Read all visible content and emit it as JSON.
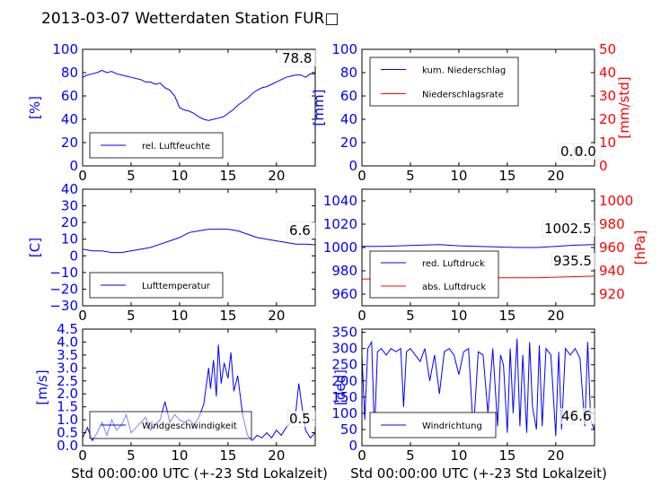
{
  "title": "2013-03-07 Wetterdaten Station FUR□",
  "xlabel": "Std 00:00:00 UTC (+-23 Std Lokalzeit)",
  "colors": {
    "blue": "#0000ff",
    "red": "#ff0000"
  },
  "chart_data": [
    {
      "id": "humidity",
      "type": "line",
      "ylabel": "[%]",
      "xlim": [
        0,
        24
      ],
      "ylim": [
        0,
        100
      ],
      "xticks": [
        "0",
        "5",
        "10",
        "15",
        "20"
      ],
      "yticks": [
        "0",
        "20",
        "40",
        "60",
        "80",
        "100"
      ],
      "legend": "lower-left",
      "end_label": "78.8",
      "series": [
        {
          "name": "rel. Luftfeuchte",
          "color": "#0000ff",
          "x": [
            0,
            0.5,
            1,
            1.5,
            2,
            2.5,
            3,
            3.5,
            4,
            4.5,
            5,
            5.5,
            6,
            6.5,
            7,
            7.5,
            8,
            8.5,
            9,
            9.5,
            10,
            10.5,
            11,
            11.5,
            12,
            12.5,
            13,
            13.5,
            14,
            14.5,
            15,
            15.5,
            16,
            16.5,
            17,
            17.5,
            18,
            18.5,
            19,
            19.5,
            20,
            20.5,
            21,
            21.5,
            22,
            22.5,
            23,
            23.5,
            24
          ],
          "y": [
            76,
            78,
            79,
            80,
            82,
            80,
            81,
            79,
            78,
            77,
            76,
            75,
            74,
            72,
            72,
            70,
            71,
            67,
            65,
            60,
            50,
            48,
            47,
            45,
            42,
            40,
            39,
            40,
            41,
            42,
            45,
            48,
            52,
            55,
            58,
            62,
            65,
            67,
            68,
            70,
            72,
            74,
            76,
            77,
            78,
            78,
            76,
            79,
            79
          ]
        }
      ]
    },
    {
      "id": "precip",
      "type": "line",
      "ylabel": "[mm]",
      "y2label": "[mm/std]",
      "xlim": [
        0,
        24
      ],
      "ylim": [
        0,
        100
      ],
      "y2lim": [
        0,
        50
      ],
      "xticks": [
        "0",
        "5",
        "10",
        "15",
        "20"
      ],
      "yticks": [
        "0",
        "20",
        "40",
        "60",
        "80",
        "100"
      ],
      "y2ticks": [
        "0",
        "10",
        "20",
        "30",
        "40",
        "50"
      ],
      "legend": "upper-left",
      "end_labels": [
        "0.0",
        "0.0"
      ],
      "series": [
        {
          "name": "kum. Niederschlag",
          "color": "#0000ff",
          "x": [
            0,
            24
          ],
          "y": [
            0,
            0
          ]
        },
        {
          "name": "Niederschlagsrate",
          "color": "#ff0000",
          "x": [
            0,
            24
          ],
          "y": [
            0,
            0
          ]
        }
      ]
    },
    {
      "id": "temperature",
      "type": "line",
      "ylabel": "[C]",
      "xlim": [
        0,
        24
      ],
      "ylim": [
        -30,
        40
      ],
      "xticks": [
        "0",
        "5",
        "10",
        "15",
        "20"
      ],
      "yticks": [
        "−30",
        "−20",
        "−10",
        "0",
        "10",
        "20",
        "30",
        "40"
      ],
      "legend": "lower-left",
      "end_label": "6.6",
      "series": [
        {
          "name": "Lufttemperatur",
          "color": "#0000ff",
          "x": [
            0,
            1,
            2,
            3,
            4,
            5,
            6,
            7,
            8,
            9,
            10,
            11,
            12,
            13,
            14,
            15,
            16,
            17,
            18,
            19,
            20,
            21,
            22,
            23,
            24
          ],
          "y": [
            4,
            3,
            3,
            2,
            2,
            3,
            4,
            5,
            7,
            9,
            11,
            14,
            15,
            16,
            16,
            16,
            15,
            13,
            11,
            10,
            9,
            8,
            7,
            7,
            6.6
          ]
        }
      ]
    },
    {
      "id": "pressure",
      "type": "line",
      "y2label": "[hPa]",
      "xlim": [
        0,
        24
      ],
      "ylim": [
        950,
        1050
      ],
      "y2lim": [
        910,
        1010
      ],
      "xticks": [
        "0",
        "5",
        "10",
        "15",
        "20"
      ],
      "yticks": [
        "960",
        "980",
        "1000",
        "1020",
        "1040"
      ],
      "y2ticks": [
        "920",
        "940",
        "960",
        "980",
        "1000"
      ],
      "legend": "lower-left",
      "end_labels": [
        "1002.5",
        "935.5"
      ],
      "series": [
        {
          "name": "red. Luftdruck",
          "color": "#0000ff",
          "x": [
            0,
            2,
            4,
            6,
            8,
            10,
            12,
            14,
            16,
            18,
            20,
            22,
            24
          ],
          "y": [
            1001,
            1001,
            1001.5,
            1002,
            1002.5,
            1001.5,
            1001,
            1000.5,
            1000,
            1000,
            1001,
            1002,
            1002.5
          ]
        },
        {
          "name": "abs. Luftdruck",
          "color": "#ff0000",
          "x": [
            0,
            2,
            4,
            6,
            8,
            10,
            12,
            14,
            16,
            18,
            20,
            22,
            24
          ],
          "y": [
            933,
            933,
            933,
            933.5,
            934,
            934,
            934,
            934,
            934,
            934,
            934.5,
            935,
            935.5
          ]
        }
      ]
    },
    {
      "id": "windspeed",
      "type": "line",
      "ylabel": "[m/s]",
      "xlim": [
        0,
        24
      ],
      "ylim": [
        0,
        4.5
      ],
      "xticks": [
        "0",
        "5",
        "10",
        "15",
        "20"
      ],
      "yticks": [
        "0.0",
        "0.5",
        "1.0",
        "1.5",
        "2.0",
        "2.5",
        "3.0",
        "3.5",
        "4.0",
        "4.5"
      ],
      "legend": "lower-left",
      "end_label": "0.5",
      "series": [
        {
          "name": "Windgeschwindigkeit",
          "color": "#0000ff",
          "x": [
            0,
            0.5,
            1,
            1.5,
            2,
            2.5,
            3,
            3.5,
            4,
            4.5,
            5,
            5.5,
            6,
            6.5,
            7,
            7.5,
            8,
            8.5,
            9,
            9.5,
            10,
            10.5,
            11,
            11.5,
            12,
            12.5,
            13,
            13.2,
            13.5,
            13.8,
            14,
            14.3,
            14.6,
            15,
            15.3,
            15.6,
            16,
            16.5,
            17,
            17.5,
            18,
            18.5,
            19,
            19.5,
            20,
            20.5,
            21,
            21.5,
            22,
            22.3,
            22.6,
            23,
            23.5,
            24
          ],
          "y": [
            0.3,
            0.7,
            0.2,
            0.5,
            0.9,
            0.4,
            1.0,
            0.6,
            0.8,
            1.2,
            0.5,
            0.7,
            0.9,
            1.1,
            0.6,
            0.8,
            1.0,
            1.7,
            0.9,
            1.2,
            1.0,
            0.9,
            1.0,
            0.8,
            1.1,
            1.6,
            3.0,
            2.2,
            3.3,
            1.9,
            3.9,
            2.4,
            3.2,
            2.6,
            3.6,
            2.1,
            2.7,
            1.2,
            0.4,
            0.2,
            0.4,
            0.3,
            0.5,
            0.3,
            0.6,
            0.4,
            0.7,
            0.9,
            1.3,
            2.4,
            1.6,
            0.6,
            0.3,
            0.5
          ]
        }
      ]
    },
    {
      "id": "winddir",
      "type": "line",
      "ylabel": "[deg]",
      "xlim": [
        0,
        24
      ],
      "ylim": [
        0,
        360
      ],
      "xticks": [
        "0",
        "5",
        "10",
        "15",
        "20"
      ],
      "yticks": [
        "0",
        "50",
        "100",
        "150",
        "200",
        "250",
        "300",
        "350"
      ],
      "legend": "lower-left",
      "end_label": "46.6",
      "series": [
        {
          "name": "Windrichtung",
          "color": "#0000ff",
          "x": [
            0,
            0.3,
            0.6,
            1,
            1.3,
            1.6,
            2,
            2.5,
            3,
            3.5,
            4,
            4.3,
            4.6,
            5,
            5.5,
            6,
            6.5,
            7,
            7.5,
            8,
            8.5,
            9,
            9.5,
            10,
            10.5,
            11,
            11.5,
            12,
            12.5,
            13,
            13.5,
            14,
            14.3,
            14.6,
            15,
            15.3,
            15.6,
            16,
            16.3,
            16.6,
            17,
            17.3,
            17.6,
            18,
            18.3,
            18.6,
            19,
            19.5,
            20,
            20.3,
            20.6,
            21,
            21.5,
            22,
            22.5,
            23,
            23.3,
            23.6,
            24
          ],
          "y": [
            280,
            80,
            300,
            320,
            40,
            290,
            300,
            280,
            300,
            290,
            300,
            120,
            290,
            300,
            280,
            260,
            300,
            200,
            280,
            160,
            290,
            300,
            280,
            220,
            290,
            300,
            40,
            290,
            280,
            100,
            300,
            60,
            280,
            250,
            40,
            300,
            100,
            330,
            60,
            280,
            40,
            320,
            120,
            50,
            310,
            60,
            300,
            280,
            30,
            290,
            50,
            300,
            280,
            300,
            270,
            60,
            320,
            80,
            46.6
          ]
        }
      ]
    }
  ]
}
